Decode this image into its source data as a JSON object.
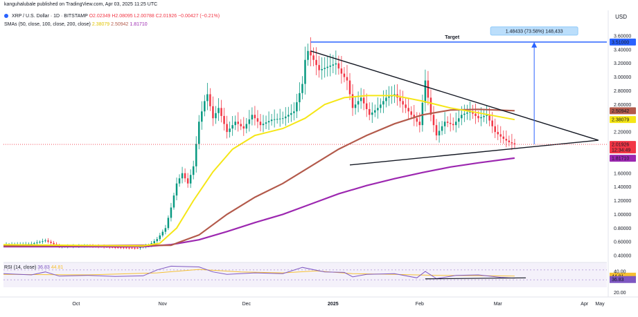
{
  "header": {
    "published": "kanguhalubale published on TradingView.com, Apr 03, 2025 11:25 UTC",
    "symbol": "XRP / U.S. Dollar · 1D · BITSTAMP",
    "open": "O2.02349",
    "high": "H2.08095",
    "low": "L2.00788",
    "close": "C2.01926",
    "change": "−0.00427 (−0.21%)",
    "sma_label": "SMAs (50, close, 100, close, 200, close)",
    "sma50": "2.38079",
    "sma100": "2.50942",
    "sma200": "1.81710",
    "currency": "USD"
  },
  "colors": {
    "up": "#089981",
    "down": "#f23645",
    "sma50": "#f5e616",
    "sma100": "#b35a4b",
    "sma200": "#9c27b0",
    "target": "#2962ff",
    "rsi": "#7e57c2",
    "rsi_ma": "#f5c033"
  },
  "annotations": {
    "target_label": "Target",
    "measure_label": "1.48433 (73.58%) 148,433"
  },
  "chart_data": {
    "type": "candlestick",
    "title": "XRP / U.S. Dollar · 1D · BITSTAMP",
    "y_axis_unit": "USD",
    "ylim": [
      0.3,
      3.72
    ],
    "y_ticks": [
      "3.60000",
      "3.40000",
      "3.20000",
      "3.00000",
      "2.80000",
      "2.60000",
      "2.40000",
      "2.20000",
      "2.00000",
      "1.80000",
      "1.60000",
      "1.40000",
      "1.20000",
      "1.00000",
      "0.80000",
      "0.60000",
      "0.40000"
    ],
    "x_ticks": [
      "Oct",
      "Nov",
      "Dec",
      "2025",
      "Feb",
      "Mar",
      "Apr",
      "May"
    ],
    "price_labels": [
      {
        "name": "target",
        "value": "3.51000",
        "color": "#2962ff"
      },
      {
        "name": "sma100",
        "value": "2.50942",
        "color": "#b35a4b"
      },
      {
        "name": "sma50",
        "value": "2.38079",
        "color": "#f5e616"
      },
      {
        "name": "last",
        "value": "2.01926",
        "sub": "12:34:49",
        "color": "#f23645"
      },
      {
        "name": "sma200",
        "value": "1.81710",
        "color": "#9c27b0"
      }
    ],
    "close_path": [
      {
        "t": 0,
        "v": 0.56
      },
      {
        "t": 10,
        "v": 0.57
      },
      {
        "t": 15,
        "v": 0.62
      },
      {
        "t": 20,
        "v": 0.53
      },
      {
        "t": 30,
        "v": 0.54
      },
      {
        "t": 40,
        "v": 0.52
      },
      {
        "t": 48,
        "v": 0.51
      },
      {
        "t": 52,
        "v": 0.55
      },
      {
        "t": 55,
        "v": 0.64
      },
      {
        "t": 58,
        "v": 0.8
      },
      {
        "t": 60,
        "v": 1.1
      },
      {
        "t": 62,
        "v": 1.45
      },
      {
        "t": 64,
        "v": 1.6
      },
      {
        "t": 66,
        "v": 1.45
      },
      {
        "t": 68,
        "v": 1.7
      },
      {
        "t": 70,
        "v": 2.35
      },
      {
        "t": 72,
        "v": 2.65
      },
      {
        "t": 73,
        "v": 2.75
      },
      {
        "t": 75,
        "v": 2.4
      },
      {
        "t": 77,
        "v": 2.55
      },
      {
        "t": 80,
        "v": 2.2
      },
      {
        "t": 83,
        "v": 2.35
      },
      {
        "t": 86,
        "v": 2.25
      },
      {
        "t": 89,
        "v": 2.45
      },
      {
        "t": 92,
        "v": 2.3
      },
      {
        "t": 96,
        "v": 2.38
      },
      {
        "t": 100,
        "v": 2.4
      },
      {
        "t": 104,
        "v": 2.5
      },
      {
        "t": 107,
        "v": 2.9
      },
      {
        "t": 108,
        "v": 3.25
      },
      {
        "t": 109,
        "v": 3.38
      },
      {
        "t": 111,
        "v": 3.25
      },
      {
        "t": 113,
        "v": 3.1
      },
      {
        "t": 116,
        "v": 3.15
      },
      {
        "t": 119,
        "v": 3.2
      },
      {
        "t": 121,
        "v": 3.05
      },
      {
        "t": 123,
        "v": 2.95
      },
      {
        "t": 125,
        "v": 2.55
      },
      {
        "t": 128,
        "v": 2.7
      },
      {
        "t": 131,
        "v": 2.45
      },
      {
        "t": 134,
        "v": 2.55
      },
      {
        "t": 137,
        "v": 2.7
      },
      {
        "t": 140,
        "v": 2.75
      },
      {
        "t": 143,
        "v": 2.6
      },
      {
        "t": 146,
        "v": 2.45
      },
      {
        "t": 149,
        "v": 2.3
      },
      {
        "t": 151,
        "v": 2.95
      },
      {
        "t": 153,
        "v": 2.45
      },
      {
        "t": 155,
        "v": 2.15
      },
      {
        "t": 158,
        "v": 2.35
      },
      {
        "t": 161,
        "v": 2.3
      },
      {
        "t": 164,
        "v": 2.45
      },
      {
        "t": 167,
        "v": 2.5
      },
      {
        "t": 170,
        "v": 2.4
      },
      {
        "t": 173,
        "v": 2.45
      },
      {
        "t": 176,
        "v": 2.2
      },
      {
        "t": 179,
        "v": 2.1
      },
      {
        "t": 181,
        "v": 2.05
      },
      {
        "t": 183,
        "v": 2.02
      }
    ],
    "sma50": [
      {
        "t": 0,
        "v": 0.56
      },
      {
        "t": 50,
        "v": 0.54
      },
      {
        "t": 56,
        "v": 0.58
      },
      {
        "t": 62,
        "v": 0.8
      },
      {
        "t": 68,
        "v": 1.2
      },
      {
        "t": 75,
        "v": 1.62
      },
      {
        "t": 82,
        "v": 1.95
      },
      {
        "t": 90,
        "v": 2.15
      },
      {
        "t": 100,
        "v": 2.25
      },
      {
        "t": 108,
        "v": 2.4
      },
      {
        "t": 115,
        "v": 2.6
      },
      {
        "t": 122,
        "v": 2.7
      },
      {
        "t": 130,
        "v": 2.73
      },
      {
        "t": 140,
        "v": 2.73
      },
      {
        "t": 150,
        "v": 2.65
      },
      {
        "t": 160,
        "v": 2.55
      },
      {
        "t": 170,
        "v": 2.48
      },
      {
        "t": 183,
        "v": 2.38
      }
    ],
    "sma100": [
      {
        "t": 0,
        "v": 0.54
      },
      {
        "t": 60,
        "v": 0.55
      },
      {
        "t": 70,
        "v": 0.7
      },
      {
        "t": 80,
        "v": 1.0
      },
      {
        "t": 90,
        "v": 1.25
      },
      {
        "t": 100,
        "v": 1.45
      },
      {
        "t": 110,
        "v": 1.7
      },
      {
        "t": 120,
        "v": 1.95
      },
      {
        "t": 130,
        "v": 2.15
      },
      {
        "t": 140,
        "v": 2.32
      },
      {
        "t": 150,
        "v": 2.45
      },
      {
        "t": 160,
        "v": 2.52
      },
      {
        "t": 170,
        "v": 2.53
      },
      {
        "t": 183,
        "v": 2.51
      }
    ],
    "sma200": [
      {
        "t": 0,
        "v": 0.53
      },
      {
        "t": 50,
        "v": 0.53
      },
      {
        "t": 60,
        "v": 0.56
      },
      {
        "t": 70,
        "v": 0.63
      },
      {
        "t": 80,
        "v": 0.75
      },
      {
        "t": 90,
        "v": 0.88
      },
      {
        "t": 100,
        "v": 1.0
      },
      {
        "t": 110,
        "v": 1.15
      },
      {
        "t": 120,
        "v": 1.3
      },
      {
        "t": 130,
        "v": 1.42
      },
      {
        "t": 140,
        "v": 1.52
      },
      {
        "t": 150,
        "v": 1.61
      },
      {
        "t": 160,
        "v": 1.69
      },
      {
        "t": 170,
        "v": 1.75
      },
      {
        "t": 183,
        "v": 1.82
      }
    ],
    "triangle": {
      "upper": [
        {
          "t": 110,
          "v": 3.38
        },
        {
          "t": 213,
          "v": 2.08
        }
      ],
      "lower": [
        {
          "t": 124,
          "v": 1.72
        },
        {
          "t": 213,
          "v": 2.08
        }
      ]
    },
    "target_line": {
      "t_start": 110,
      "t_end": 216,
      "v": 3.51
    },
    "measure": {
      "t": 190,
      "v_from": 2.02,
      "v_to": 3.51
    },
    "rsi": {
      "label": "RSI (14, close)",
      "value": "36.83",
      "ma_value": "44.81",
      "ticks": [
        "40.00",
        "20.00"
      ],
      "values": [
        {
          "t": 0,
          "v": 55
        },
        {
          "t": 10,
          "v": 50
        },
        {
          "t": 15,
          "v": 62
        },
        {
          "t": 20,
          "v": 45
        },
        {
          "t": 30,
          "v": 48
        },
        {
          "t": 40,
          "v": 44
        },
        {
          "t": 50,
          "v": 46
        },
        {
          "t": 55,
          "v": 70
        },
        {
          "t": 60,
          "v": 85
        },
        {
          "t": 70,
          "v": 82
        },
        {
          "t": 75,
          "v": 62
        },
        {
          "t": 80,
          "v": 52
        },
        {
          "t": 90,
          "v": 58
        },
        {
          "t": 100,
          "v": 55
        },
        {
          "t": 107,
          "v": 80
        },
        {
          "t": 115,
          "v": 62
        },
        {
          "t": 122,
          "v": 60
        },
        {
          "t": 125,
          "v": 42
        },
        {
          "t": 130,
          "v": 52
        },
        {
          "t": 140,
          "v": 55
        },
        {
          "t": 148,
          "v": 38
        },
        {
          "t": 151,
          "v": 64
        },
        {
          "t": 155,
          "v": 35
        },
        {
          "t": 162,
          "v": 48
        },
        {
          "t": 170,
          "v": 50
        },
        {
          "t": 178,
          "v": 40
        },
        {
          "t": 183,
          "v": 37
        }
      ],
      "ma": [
        {
          "t": 0,
          "v": 52
        },
        {
          "t": 30,
          "v": 50
        },
        {
          "t": 55,
          "v": 58
        },
        {
          "t": 70,
          "v": 72
        },
        {
          "t": 85,
          "v": 62
        },
        {
          "t": 100,
          "v": 58
        },
        {
          "t": 112,
          "v": 66
        },
        {
          "t": 125,
          "v": 55
        },
        {
          "t": 140,
          "v": 52
        },
        {
          "t": 155,
          "v": 48
        },
        {
          "t": 170,
          "v": 47
        },
        {
          "t": 183,
          "v": 45
        }
      ],
      "divergence": [
        {
          "t": 151,
          "v": 34
        },
        {
          "t": 187,
          "v": 38
        }
      ]
    }
  }
}
